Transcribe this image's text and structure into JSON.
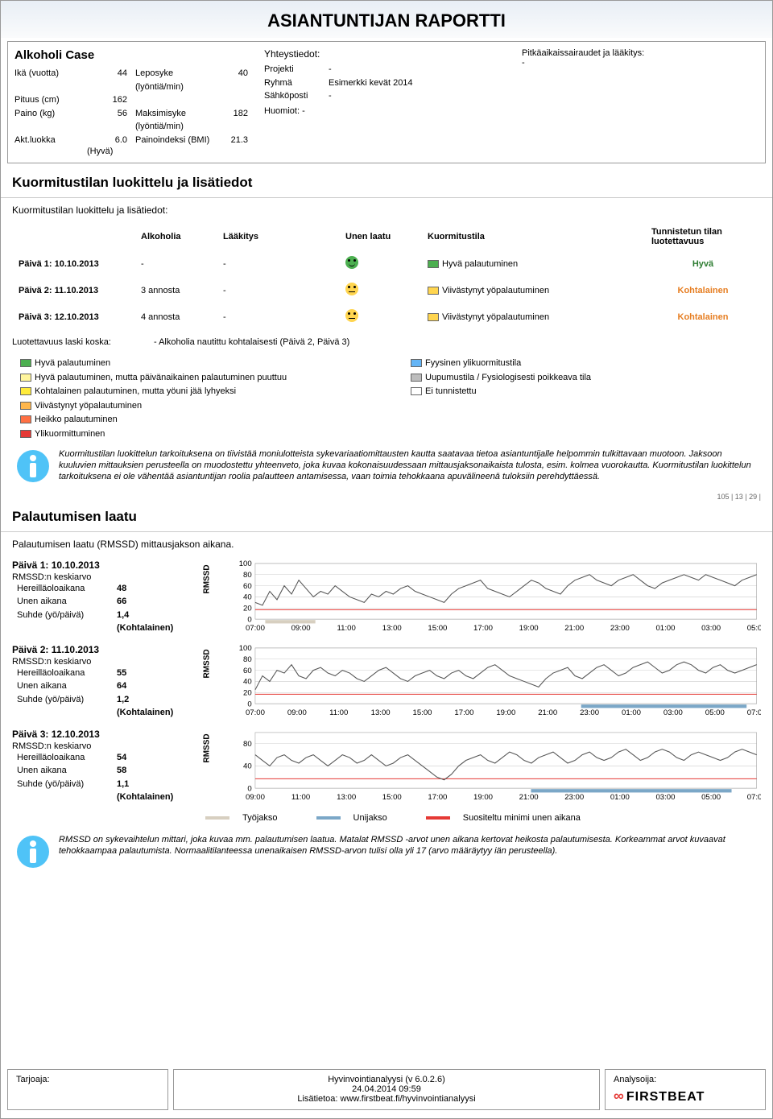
{
  "title": "ASIANTUNTIJAN RAPORTTI",
  "case_name": "Alkoholi Case",
  "patient": {
    "rows": [
      {
        "k": "Ikä (vuotta)",
        "v": "44",
        "k2": "Leposyke (lyöntiä/min)",
        "v2": "40"
      },
      {
        "k": "Pituus (cm)",
        "v": "162",
        "k2": "",
        "v2": ""
      },
      {
        "k": "Paino (kg)",
        "v": "56",
        "k2": "Maksimisyke (lyöntiä/min)",
        "v2": "182"
      },
      {
        "k": "Akt.luokka",
        "v": "6.0",
        "k2": "Painoindeksi (BMI)",
        "v2": "21.3"
      }
    ],
    "akt_note": "(Hyvä)"
  },
  "contact": {
    "title": "Yhteystiedot:",
    "rows": [
      {
        "k": "Projekti",
        "v": "-"
      },
      {
        "k": "Ryhmä",
        "v": "Esimerkki kevät 2014"
      },
      {
        "k": "Sähköposti",
        "v": "-"
      }
    ],
    "huomiot_label": "Huomiot: -"
  },
  "longterm": {
    "title": "Pitkäaikaissairaudet ja lääkitys:",
    "value": "-"
  },
  "classification": {
    "title": "Kuormitustilan luokittelu ja lisätiedot",
    "subtitle": "Kuormitustilan luokittelu ja lisätiedot:",
    "headers": [
      "",
      "Alkoholia",
      "Lääkitys",
      "Unen laatu",
      "Kuormitustila",
      "Tunnistetun tilan luotettavuus"
    ],
    "rows": [
      {
        "day": "Päivä 1: 10.10.2013",
        "alko": "-",
        "med": "-",
        "face": "green",
        "swatch": "#4caf50",
        "state": "Hyvä palautuminen",
        "rel": "Hyvä",
        "relClass": "good"
      },
      {
        "day": "Päivä 2: 11.10.2013",
        "alko": "3 annosta",
        "med": "-",
        "face": "yellow",
        "swatch": "#ffd54f",
        "state": "Viivästynyt yöpalautuminen",
        "rel": "Kohtalainen",
        "relClass": "moderate"
      },
      {
        "day": "Päivä 3: 12.10.2013",
        "alko": "4 annosta",
        "med": "-",
        "face": "yellow",
        "swatch": "#ffd54f",
        "state": "Viivästynyt yöpalautuminen",
        "rel": "Kohtalainen",
        "relClass": "moderate"
      }
    ],
    "note_label": "Luotettavuus laski koska:",
    "note_value": "- Alkoholia nautittu kohtalaisesti (Päivä 2, Päivä 3)"
  },
  "legend": {
    "left": [
      {
        "c": "#4caf50",
        "t": "Hyvä palautuminen"
      },
      {
        "c": "#fff59d",
        "t": "Hyvä palautuminen, mutta päivänaikainen palautuminen puuttuu"
      },
      {
        "c": "#ffeb3b",
        "t": "Kohtalainen palautuminen, mutta yöuni jää lyhyeksi"
      },
      {
        "c": "#ffb74d",
        "t": "Viivästynyt yöpalautuminen"
      },
      {
        "c": "#ff7043",
        "t": "Heikko palautuminen"
      },
      {
        "c": "#e53935",
        "t": "Ylikuormittuminen"
      }
    ],
    "right": [
      {
        "c": "#64b5f6",
        "t": "Fyysinen ylikuormitustila"
      },
      {
        "c": "#bdbdbd",
        "t": "Uupumustila / Fysiologisesti poikkeava tila"
      },
      {
        "c": "#ffffff",
        "t": "Ei tunnistettu"
      }
    ]
  },
  "info1": "Kuormitustilan luokittelun tarkoituksena on tiivistää moniulotteista sykevariaatiomittausten kautta saatavaa tietoa asiantuntijalle helpommin tulkittavaan muotoon. Jaksoon kuuluvien mittauksien perusteella on muodostettu yhteenveto, joka kuvaa kokonaisuudessaan mittausjaksonaikaista tulosta, esim. kolmea vuorokautta. Kuormitustilan luokittelun tarkoituksena ei ole vähentää asiantuntijan roolia palautteen antamisessa, vaan toimia tehokkaana apuvälineenä tuloksiin perehdyttäessä.",
  "small_right": "105 | 13 | 29 |",
  "rmssd": {
    "title": "Palautumisen laatu",
    "subtitle": "Palautumisen laatu (RMSSD) mittausjakson aikana.",
    "ylabel": "RMSSD",
    "avg_label": "RMSSD:n keskiarvo",
    "awake_label": "Hereilläoloaikana",
    "sleep_label": "Unen aikana",
    "ratio_label": "Suhde (yö/päivä)",
    "days": [
      {
        "title": "Päivä 1: 10.10.2013",
        "awake": "48",
        "sleep": "66",
        "ratio": "1,4",
        "rating": "(Kohtalainen)",
        "yticks": [
          "0",
          "20",
          "40",
          "60",
          "80",
          "100"
        ],
        "ymax": 100,
        "threshold": 17,
        "xticks": [
          "07:00",
          "09:00",
          "11:00",
          "13:00",
          "15:00",
          "17:00",
          "19:00",
          "21:00",
          "23:00",
          "01:00",
          "03:00",
          "05:00"
        ],
        "values": [
          30,
          25,
          50,
          35,
          60,
          45,
          70,
          55,
          40,
          50,
          45,
          60,
          50,
          40,
          35,
          30,
          45,
          40,
          50,
          45,
          55,
          60,
          50,
          45,
          40,
          35,
          30,
          45,
          55,
          60,
          65,
          70,
          55,
          50,
          45,
          40,
          50,
          60,
          70,
          65,
          55,
          50,
          45,
          60,
          70,
          75,
          80,
          70,
          65,
          60,
          70,
          75,
          80,
          70,
          60,
          55,
          65,
          70,
          75,
          80,
          75,
          70,
          80,
          75,
          70,
          65,
          60,
          70,
          75,
          80
        ],
        "work": [
          [
            0.02,
            0.12
          ]
        ],
        "sleep_bars": []
      },
      {
        "title": "Päivä 2: 11.10.2013",
        "awake": "55",
        "sleep": "64",
        "ratio": "1,2",
        "rating": "(Kohtalainen)",
        "yticks": [
          "0",
          "20",
          "40",
          "60",
          "80",
          "100"
        ],
        "ymax": 100,
        "threshold": 17,
        "xticks": [
          "07:00",
          "09:00",
          "11:00",
          "13:00",
          "15:00",
          "17:00",
          "19:00",
          "21:00",
          "23:00",
          "01:00",
          "03:00",
          "05:00",
          "07:00"
        ],
        "values": [
          25,
          50,
          40,
          60,
          55,
          70,
          50,
          45,
          60,
          65,
          55,
          50,
          60,
          55,
          45,
          40,
          50,
          60,
          65,
          55,
          45,
          40,
          50,
          55,
          60,
          50,
          45,
          55,
          60,
          50,
          45,
          55,
          65,
          70,
          60,
          50,
          45,
          40,
          35,
          30,
          45,
          55,
          60,
          65,
          50,
          45,
          55,
          65,
          70,
          60,
          50,
          55,
          65,
          70,
          75,
          65,
          55,
          60,
          70,
          75,
          70,
          60,
          55,
          65,
          70,
          60,
          55,
          60,
          65,
          70
        ],
        "work": [],
        "sleep_bars": [
          [
            0.65,
            0.98
          ]
        ]
      },
      {
        "title": "Päivä 3: 12.10.2013",
        "awake": "54",
        "sleep": "58",
        "ratio": "1,1",
        "rating": "(Kohtalainen)",
        "yticks": [
          "0",
          "40",
          "80"
        ],
        "ymax": 100,
        "threshold": 17,
        "xticks": [
          "09:00",
          "11:00",
          "13:00",
          "15:00",
          "17:00",
          "19:00",
          "21:00",
          "23:00",
          "01:00",
          "03:00",
          "05:00",
          "07:00"
        ],
        "values": [
          60,
          50,
          40,
          55,
          60,
          50,
          45,
          55,
          60,
          50,
          40,
          50,
          60,
          55,
          45,
          50,
          60,
          50,
          40,
          45,
          55,
          60,
          50,
          40,
          30,
          20,
          15,
          25,
          40,
          50,
          55,
          60,
          50,
          45,
          55,
          65,
          60,
          50,
          45,
          55,
          60,
          65,
          55,
          45,
          50,
          60,
          65,
          55,
          50,
          55,
          65,
          70,
          60,
          50,
          55,
          65,
          70,
          65,
          55,
          50,
          60,
          65,
          60,
          55,
          50,
          55,
          65,
          70,
          65,
          60
        ],
        "work": [],
        "sleep_bars": [
          [
            0.55,
            0.95
          ]
        ]
      }
    ],
    "chart_legend": [
      {
        "color": "#d7cfc0",
        "label": "Työjakso"
      },
      {
        "color": "#7ba7c7",
        "label": "Unijakso"
      },
      {
        "color": "#e53935",
        "label": "Suositeltu minimi unen aikana"
      }
    ],
    "colors": {
      "line": "#555",
      "threshold": "#e53935",
      "grid": "#ccc",
      "work": "#d7cfc0",
      "sleep": "#7ba7c7"
    }
  },
  "info2": "RMSSD on sykevaihtelun mittari, joka kuvaa mm. palautumisen laatua. Matalat RMSSD -arvot unen aikana kertovat heikosta palautumisesta. Korkeammat arvot kuvaavat tehokkaampaa palautumista. Normaalitilanteessa unenaikaisen RMSSD-arvon tulisi olla yli 17 (arvo määräytyy iän perusteella).",
  "footer": {
    "left": "Tarjoaja:",
    "mid_line1": "Hyvinvointianalyysi (v 6.0.2.6)",
    "mid_line2": "24.04.2014 09:59",
    "mid_line3": "Lisätietoa: www.firstbeat.fi/hyvinvointianalyysi",
    "right": "Analysoija:",
    "brand": "FIRSTBEAT"
  }
}
